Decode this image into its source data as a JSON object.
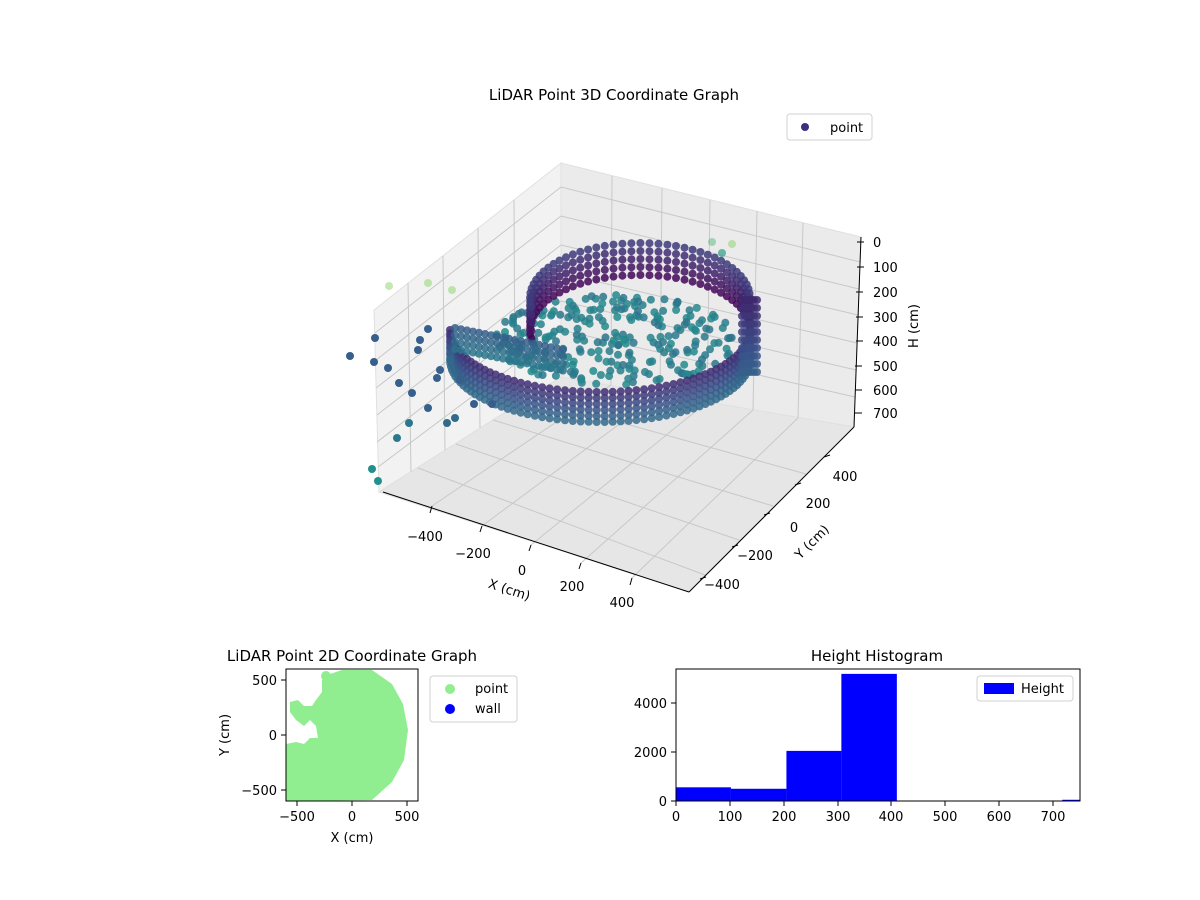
{
  "colors": {
    "scatter3d_legend": "#3b2f7f",
    "point2d": "#90ee90",
    "wall2d": "#0000ff",
    "histogram": "#0000ff",
    "pane": "#f2f2f2",
    "grid": "#c8c8c8"
  },
  "chart_data": [
    {
      "type": "scatter3d",
      "title": "LiDAR Point 3D Coordinate Graph",
      "xlabel": "X (cm)",
      "ylabel": "Y (cm)",
      "zlabel": "H (cm)",
      "xticks": [
        "−400",
        "−200",
        "0",
        "200",
        "400"
      ],
      "yticks": [
        "400",
        "200",
        "0",
        "−200",
        "−400"
      ],
      "zticks": [
        "0",
        "100",
        "200",
        "300",
        "400",
        "500",
        "600",
        "700"
      ],
      "xlim": [
        -550,
        550
      ],
      "ylim": [
        -550,
        550
      ],
      "zlim": [
        750,
        0
      ],
      "colormap": "viridis",
      "legend": {
        "entries": [
          "point"
        ],
        "placement": "top-right"
      },
      "grid": true
    },
    {
      "type": "scatter",
      "title": "LiDAR Point 2D Coordinate Graph",
      "xlabel": "X (cm)",
      "ylabel": "Y (cm)",
      "xticks": [
        "−500",
        "0",
        "500"
      ],
      "yticks": [
        "500",
        "0",
        "−500"
      ],
      "xlim": [
        -600,
        600
      ],
      "ylim": [
        -600,
        600
      ],
      "series": [
        {
          "name": "point"
        },
        {
          "name": "wall"
        }
      ],
      "legend": {
        "placement": "outside-right"
      }
    },
    {
      "type": "bar",
      "title": "Height Histogram",
      "bins": [
        [
          0,
          102
        ],
        [
          102,
          205
        ],
        [
          205,
          307
        ],
        [
          307,
          410
        ],
        [
          410,
          512
        ],
        [
          512,
          615
        ],
        [
          615,
          717
        ],
        [
          717,
          750
        ]
      ],
      "values": [
        560,
        500,
        2050,
        5200,
        0,
        0,
        0,
        50
      ],
      "xticks": [
        "0",
        "100",
        "200",
        "300",
        "400",
        "500",
        "600",
        "700"
      ],
      "yticks": [
        "0",
        "2000",
        "4000"
      ],
      "xlim": [
        0,
        750
      ],
      "ylim": [
        0,
        5400
      ],
      "series": [
        {
          "name": "Height"
        }
      ],
      "legend": {
        "placement": "top-right"
      }
    }
  ]
}
